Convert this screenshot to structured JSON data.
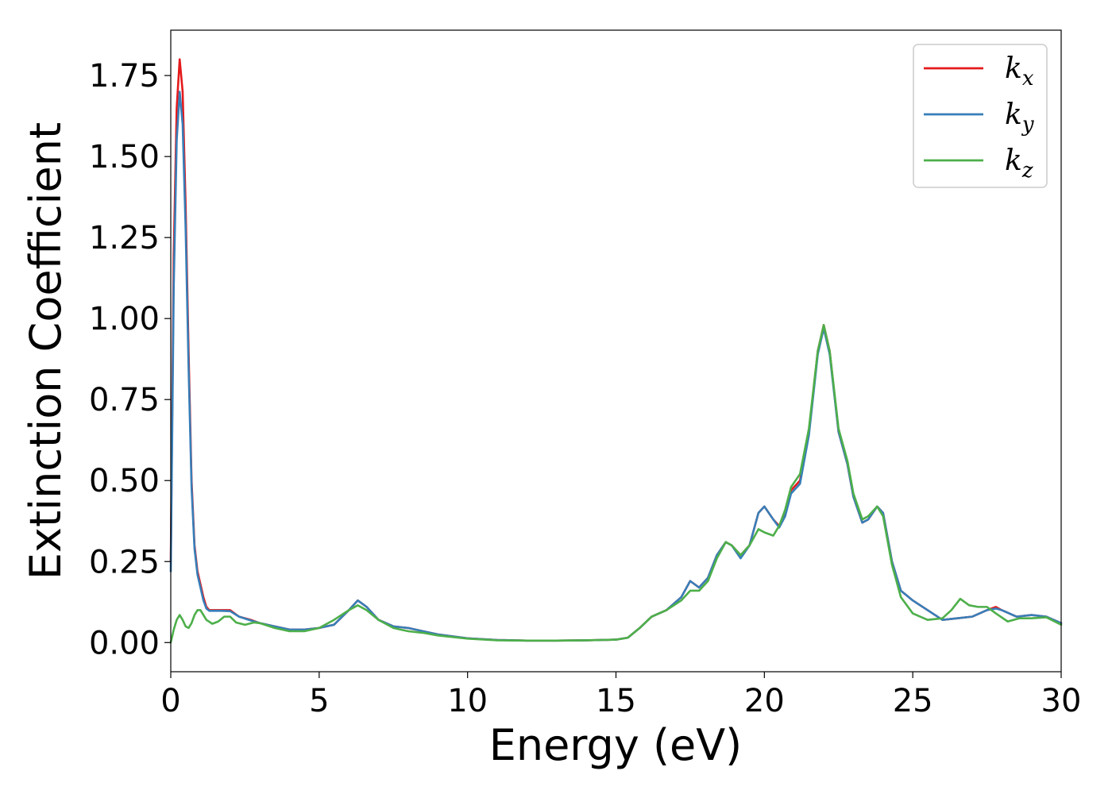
{
  "chart_data": {
    "type": "line",
    "title": "",
    "xlabel": "Energy (eV)",
    "ylabel": "Extinction Coefficient",
    "xlim": [
      0,
      30
    ],
    "ylim": [
      -0.09,
      1.89
    ],
    "x_ticks": [
      0,
      5,
      10,
      15,
      20,
      25,
      30
    ],
    "y_ticks": [
      0.0,
      0.25,
      0.5,
      0.75,
      1.0,
      1.25,
      1.5,
      1.75
    ],
    "x_tick_labels": [
      "0",
      "5",
      "10",
      "15",
      "20",
      "25",
      "30"
    ],
    "y_tick_labels": [
      "0.00",
      "0.25",
      "0.50",
      "0.75",
      "1.00",
      "1.25",
      "1.50",
      "1.75"
    ],
    "grid": false,
    "legend_position": "top-right",
    "series": [
      {
        "name": "k_x",
        "legend_base": "k",
        "legend_sub": "x",
        "color": "#e41a1c",
        "points": [
          [
            0,
            0.25
          ],
          [
            0.1,
            1.2
          ],
          [
            0.2,
            1.65
          ],
          [
            0.3,
            1.8
          ],
          [
            0.4,
            1.7
          ],
          [
            0.5,
            1.35
          ],
          [
            0.6,
            0.9
          ],
          [
            0.7,
            0.5
          ],
          [
            0.8,
            0.3
          ],
          [
            0.9,
            0.22
          ],
          [
            1.0,
            0.18
          ],
          [
            1.1,
            0.14
          ],
          [
            1.2,
            0.11
          ],
          [
            1.3,
            0.1
          ],
          [
            1.5,
            0.1
          ],
          [
            1.7,
            0.1
          ],
          [
            2.0,
            0.1
          ],
          [
            2.3,
            0.08
          ],
          [
            2.7,
            0.07
          ],
          [
            3.0,
            0.06
          ],
          [
            3.5,
            0.05
          ],
          [
            4.0,
            0.04
          ],
          [
            4.5,
            0.04
          ],
          [
            5.0,
            0.045
          ],
          [
            5.5,
            0.055
          ],
          [
            6.0,
            0.1
          ],
          [
            6.3,
            0.13
          ],
          [
            6.6,
            0.11
          ],
          [
            7.0,
            0.07
          ],
          [
            7.5,
            0.05
          ],
          [
            8.0,
            0.045
          ],
          [
            8.5,
            0.035
          ],
          [
            9.0,
            0.025
          ],
          [
            10.0,
            0.013
          ],
          [
            11.0,
            0.008
          ],
          [
            12.0,
            0.006
          ],
          [
            13.0,
            0.006
          ],
          [
            14.0,
            0.007
          ],
          [
            15.0,
            0.009
          ],
          [
            15.4,
            0.015
          ],
          [
            15.8,
            0.045
          ],
          [
            16.2,
            0.08
          ],
          [
            16.7,
            0.1
          ],
          [
            17.2,
            0.14
          ],
          [
            17.5,
            0.19
          ],
          [
            17.8,
            0.17
          ],
          [
            18.1,
            0.2
          ],
          [
            18.4,
            0.27
          ],
          [
            18.7,
            0.31
          ],
          [
            18.9,
            0.3
          ],
          [
            19.2,
            0.27
          ],
          [
            19.5,
            0.3
          ],
          [
            19.8,
            0.4
          ],
          [
            20.0,
            0.42
          ],
          [
            20.3,
            0.38
          ],
          [
            20.5,
            0.36
          ],
          [
            20.7,
            0.4
          ],
          [
            20.9,
            0.47
          ],
          [
            21.2,
            0.5
          ],
          [
            21.5,
            0.65
          ],
          [
            21.8,
            0.9
          ],
          [
            22.0,
            0.98
          ],
          [
            22.2,
            0.9
          ],
          [
            22.5,
            0.65
          ],
          [
            22.8,
            0.55
          ],
          [
            23.0,
            0.45
          ],
          [
            23.3,
            0.37
          ],
          [
            23.5,
            0.38
          ],
          [
            23.8,
            0.42
          ],
          [
            24.0,
            0.4
          ],
          [
            24.3,
            0.25
          ],
          [
            24.6,
            0.16
          ],
          [
            25.0,
            0.13
          ],
          [
            25.5,
            0.1
          ],
          [
            26.0,
            0.07
          ],
          [
            26.5,
            0.075
          ],
          [
            27.0,
            0.08
          ],
          [
            27.5,
            0.1
          ],
          [
            27.8,
            0.11
          ],
          [
            28.0,
            0.1
          ],
          [
            28.5,
            0.08
          ],
          [
            29.0,
            0.085
          ],
          [
            29.5,
            0.08
          ],
          [
            30.0,
            0.06
          ]
        ]
      },
      {
        "name": "k_y",
        "legend_base": "k",
        "legend_sub": "y",
        "color": "#377eb8",
        "points": [
          [
            0,
            0.22
          ],
          [
            0.1,
            1.1
          ],
          [
            0.2,
            1.55
          ],
          [
            0.3,
            1.7
          ],
          [
            0.4,
            1.6
          ],
          [
            0.5,
            1.28
          ],
          [
            0.6,
            0.85
          ],
          [
            0.7,
            0.48
          ],
          [
            0.8,
            0.29
          ],
          [
            0.9,
            0.21
          ],
          [
            1.0,
            0.17
          ],
          [
            1.1,
            0.13
          ],
          [
            1.2,
            0.105
          ],
          [
            1.3,
            0.098
          ],
          [
            1.5,
            0.098
          ],
          [
            1.7,
            0.098
          ],
          [
            2.0,
            0.097
          ],
          [
            2.3,
            0.08
          ],
          [
            2.7,
            0.068
          ],
          [
            3.0,
            0.06
          ],
          [
            3.5,
            0.05
          ],
          [
            4.0,
            0.04
          ],
          [
            4.5,
            0.04
          ],
          [
            5.0,
            0.045
          ],
          [
            5.5,
            0.055
          ],
          [
            6.0,
            0.1
          ],
          [
            6.3,
            0.13
          ],
          [
            6.6,
            0.11
          ],
          [
            7.0,
            0.07
          ],
          [
            7.5,
            0.05
          ],
          [
            8.0,
            0.045
          ],
          [
            8.5,
            0.035
          ],
          [
            9.0,
            0.025
          ],
          [
            10.0,
            0.013
          ],
          [
            11.0,
            0.008
          ],
          [
            12.0,
            0.006
          ],
          [
            13.0,
            0.006
          ],
          [
            14.0,
            0.007
          ],
          [
            15.0,
            0.009
          ],
          [
            15.4,
            0.015
          ],
          [
            15.8,
            0.045
          ],
          [
            16.2,
            0.08
          ],
          [
            16.7,
            0.1
          ],
          [
            17.2,
            0.14
          ],
          [
            17.5,
            0.19
          ],
          [
            17.8,
            0.17
          ],
          [
            18.1,
            0.2
          ],
          [
            18.4,
            0.27
          ],
          [
            18.7,
            0.31
          ],
          [
            18.9,
            0.3
          ],
          [
            19.2,
            0.26
          ],
          [
            19.5,
            0.3
          ],
          [
            19.8,
            0.4
          ],
          [
            20.0,
            0.42
          ],
          [
            20.3,
            0.38
          ],
          [
            20.5,
            0.355
          ],
          [
            20.7,
            0.39
          ],
          [
            20.9,
            0.46
          ],
          [
            21.2,
            0.49
          ],
          [
            21.5,
            0.64
          ],
          [
            21.8,
            0.89
          ],
          [
            22.0,
            0.97
          ],
          [
            22.2,
            0.89
          ],
          [
            22.5,
            0.65
          ],
          [
            22.8,
            0.55
          ],
          [
            23.0,
            0.45
          ],
          [
            23.3,
            0.37
          ],
          [
            23.5,
            0.38
          ],
          [
            23.8,
            0.42
          ],
          [
            24.0,
            0.4
          ],
          [
            24.3,
            0.25
          ],
          [
            24.6,
            0.16
          ],
          [
            25.0,
            0.13
          ],
          [
            25.5,
            0.1
          ],
          [
            26.0,
            0.07
          ],
          [
            26.5,
            0.075
          ],
          [
            27.0,
            0.08
          ],
          [
            27.5,
            0.1
          ],
          [
            27.8,
            0.105
          ],
          [
            28.0,
            0.1
          ],
          [
            28.5,
            0.08
          ],
          [
            29.0,
            0.085
          ],
          [
            29.5,
            0.08
          ],
          [
            30.0,
            0.06
          ]
        ]
      },
      {
        "name": "k_z",
        "legend_base": "k",
        "legend_sub": "z",
        "color": "#4daf4a",
        "points": [
          [
            0,
            0.0
          ],
          [
            0.1,
            0.04
          ],
          [
            0.2,
            0.07
          ],
          [
            0.3,
            0.085
          ],
          [
            0.4,
            0.07
          ],
          [
            0.5,
            0.05
          ],
          [
            0.6,
            0.045
          ],
          [
            0.7,
            0.06
          ],
          [
            0.8,
            0.085
          ],
          [
            0.9,
            0.1
          ],
          [
            1.0,
            0.1
          ],
          [
            1.1,
            0.085
          ],
          [
            1.2,
            0.07
          ],
          [
            1.4,
            0.058
          ],
          [
            1.6,
            0.065
          ],
          [
            1.8,
            0.08
          ],
          [
            2.0,
            0.08
          ],
          [
            2.2,
            0.062
          ],
          [
            2.5,
            0.055
          ],
          [
            2.8,
            0.062
          ],
          [
            3.0,
            0.06
          ],
          [
            3.5,
            0.045
          ],
          [
            4.0,
            0.035
          ],
          [
            4.5,
            0.035
          ],
          [
            5.0,
            0.045
          ],
          [
            5.5,
            0.07
          ],
          [
            6.0,
            0.1
          ],
          [
            6.3,
            0.115
          ],
          [
            6.6,
            0.1
          ],
          [
            7.0,
            0.07
          ],
          [
            7.5,
            0.045
          ],
          [
            8.0,
            0.035
          ],
          [
            8.5,
            0.03
          ],
          [
            9.0,
            0.022
          ],
          [
            10.0,
            0.012
          ],
          [
            11.0,
            0.007
          ],
          [
            12.0,
            0.006
          ],
          [
            13.0,
            0.006
          ],
          [
            14.0,
            0.007
          ],
          [
            15.0,
            0.009
          ],
          [
            15.4,
            0.015
          ],
          [
            15.8,
            0.045
          ],
          [
            16.2,
            0.08
          ],
          [
            16.7,
            0.1
          ],
          [
            17.2,
            0.13
          ],
          [
            17.5,
            0.16
          ],
          [
            17.8,
            0.16
          ],
          [
            18.1,
            0.19
          ],
          [
            18.4,
            0.26
          ],
          [
            18.7,
            0.31
          ],
          [
            18.9,
            0.3
          ],
          [
            19.2,
            0.27
          ],
          [
            19.5,
            0.3
          ],
          [
            19.8,
            0.35
          ],
          [
            20.0,
            0.34
          ],
          [
            20.3,
            0.33
          ],
          [
            20.5,
            0.36
          ],
          [
            20.7,
            0.41
          ],
          [
            20.9,
            0.48
          ],
          [
            21.2,
            0.52
          ],
          [
            21.5,
            0.66
          ],
          [
            21.8,
            0.9
          ],
          [
            22.0,
            0.98
          ],
          [
            22.2,
            0.9
          ],
          [
            22.5,
            0.66
          ],
          [
            22.8,
            0.56
          ],
          [
            23.0,
            0.46
          ],
          [
            23.3,
            0.38
          ],
          [
            23.5,
            0.39
          ],
          [
            23.8,
            0.42
          ],
          [
            24.0,
            0.39
          ],
          [
            24.3,
            0.24
          ],
          [
            24.6,
            0.14
          ],
          [
            25.0,
            0.09
          ],
          [
            25.5,
            0.07
          ],
          [
            26.0,
            0.075
          ],
          [
            26.3,
            0.1
          ],
          [
            26.6,
            0.135
          ],
          [
            26.9,
            0.115
          ],
          [
            27.2,
            0.11
          ],
          [
            27.5,
            0.11
          ],
          [
            27.8,
            0.09
          ],
          [
            28.2,
            0.065
          ],
          [
            28.6,
            0.075
          ],
          [
            29.0,
            0.075
          ],
          [
            29.5,
            0.078
          ],
          [
            30.0,
            0.055
          ]
        ]
      }
    ]
  }
}
